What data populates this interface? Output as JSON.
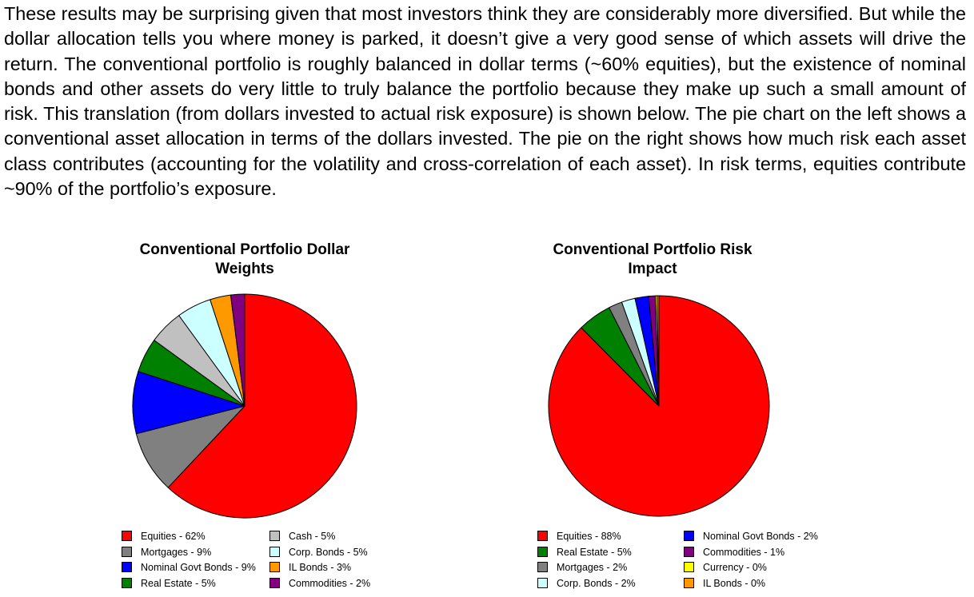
{
  "document": {
    "paragraph_lines": [
      "These results may be surprising given that most investors think they are considerably more",
      "diversified. But while the dollar allocation tells you where money is parked, it doesn’t give a very",
      "good sense of which assets will drive the return.  The conventional portfolio is roughly balanced in",
      "dollar terms (~60% equities), but the existence of nominal bonds and other assets do very little to",
      "truly balance the portfolio because they make up such a small amount of risk. This translation (from",
      "dollars invested to actual risk exposure) is shown below.  The pie chart on the left shows a",
      "conventional asset allocation in terms of the dollars invested.  The pie on the right shows how much",
      "risk each asset class contributes (accounting for the volatility and cross-correlation of each asset).",
      "In risk terms, equities contribute ~90% of the portfolio’s exposure."
    ]
  },
  "chart_data": [
    {
      "type": "pie",
      "title_lines": [
        "Conventional Portfolio Dollar",
        "Weights"
      ],
      "slices": [
        {
          "name": "Equities",
          "value": 62,
          "color": "#ff0000"
        },
        {
          "name": "Mortgages",
          "value": 9,
          "color": "#808080"
        },
        {
          "name": "Nominal Govt Bonds",
          "value": 9,
          "color": "#0000ff"
        },
        {
          "name": "Real Estate",
          "value": 5,
          "color": "#008000"
        },
        {
          "name": "Cash",
          "value": 5,
          "color": "#c0c0c0"
        },
        {
          "name": "Corp. Bonds",
          "value": 5,
          "color": "#ccffff"
        },
        {
          "name": "IL Bonds",
          "value": 3,
          "color": "#ff9900"
        },
        {
          "name": "Commodities",
          "value": 2,
          "color": "#800080"
        }
      ],
      "legend": [
        {
          "label": "Equities - 62%",
          "color": "#ff0000"
        },
        {
          "label": "Mortgages - 9%",
          "color": "#808080"
        },
        {
          "label": "Nominal Govt Bonds - 9%",
          "color": "#0000ff"
        },
        {
          "label": "Real Estate - 5%",
          "color": "#008000"
        },
        {
          "label": "Cash - 5%",
          "color": "#c0c0c0"
        },
        {
          "label": "Corp. Bonds - 5%",
          "color": "#ccffff"
        },
        {
          "label": "IL Bonds - 3%",
          "color": "#ff9900"
        },
        {
          "label": "Commodities - 2%",
          "color": "#800080"
        }
      ]
    },
    {
      "type": "pie",
      "title_lines": [
        "Conventional Portfolio Risk",
        "Impact"
      ],
      "slices": [
        {
          "name": "Equities",
          "value": 88,
          "color": "#ff0000"
        },
        {
          "name": "Real Estate",
          "value": 5,
          "color": "#008000"
        },
        {
          "name": "Mortgages",
          "value": 2,
          "color": "#808080"
        },
        {
          "name": "Corp. Bonds",
          "value": 2,
          "color": "#ccffff"
        },
        {
          "name": "Nominal Govt Bonds",
          "value": 2,
          "color": "#0000ff"
        },
        {
          "name": "Commodities",
          "value": 1,
          "color": "#800080"
        },
        {
          "name": "Currency",
          "value": 0.25,
          "color": "#ffff00"
        },
        {
          "name": "IL Bonds",
          "value": 0.25,
          "color": "#ff9900"
        }
      ],
      "legend": [
        {
          "label": "Equities - 88%",
          "color": "#ff0000"
        },
        {
          "label": "Real Estate - 5%",
          "color": "#008000"
        },
        {
          "label": "Mortgages - 2%",
          "color": "#808080"
        },
        {
          "label": "Corp. Bonds - 2%",
          "color": "#ccffff"
        },
        {
          "label": "Nominal Govt Bonds - 2%",
          "color": "#0000ff"
        },
        {
          "label": "Commodities - 1%",
          "color": "#800080"
        },
        {
          "label": "Currency - 0%",
          "color": "#ffff00"
        },
        {
          "label": "IL Bonds - 0%",
          "color": "#ff9900"
        }
      ]
    }
  ]
}
